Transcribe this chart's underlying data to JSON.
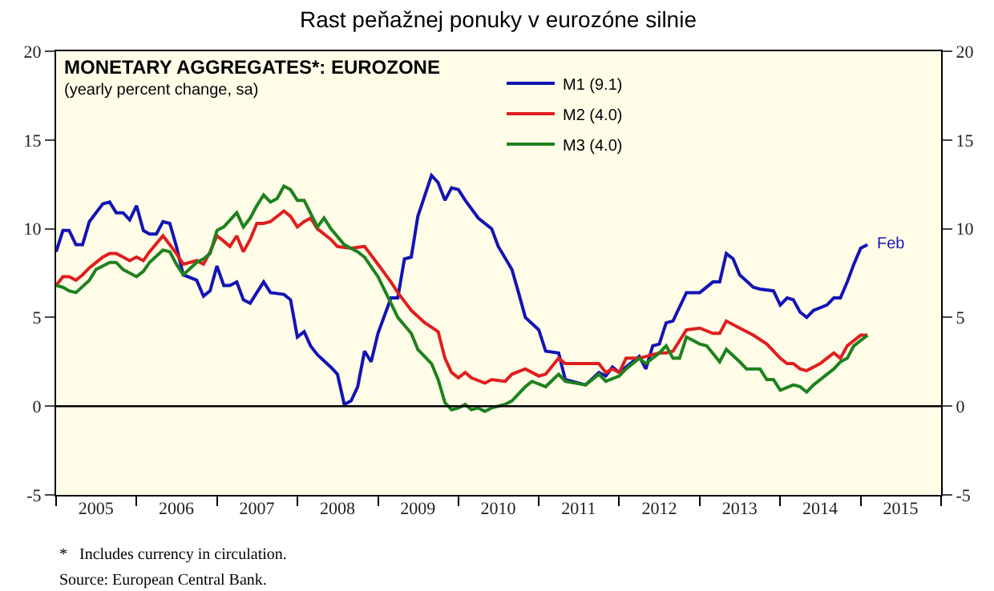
{
  "chart_data": {
    "type": "line",
    "title": "Rast peňažnej ponuky v eurozóne silnie",
    "subtitle": "MONETARY AGGREGATES*: EUROZONE",
    "annotations": [
      "(yearly percent change, sa)",
      "*   Includes currency in circulation.",
      "Source: European Central Bank.",
      {
        "text": "Feb",
        "x": "2015-02",
        "y": 9.1
      }
    ],
    "series": [
      {
        "name": "M1 (9.1)",
        "color": "#1414b4",
        "x": [
          "2005-01",
          "2005-02",
          "2005-03",
          "2005-04",
          "2005-05",
          "2005-06",
          "2005-08",
          "2005-09",
          "2005-10",
          "2005-11",
          "2005-12",
          "2006-01",
          "2006-02",
          "2006-03",
          "2006-04",
          "2006-05",
          "2006-06",
          "2006-07",
          "2006-08",
          "2006-10",
          "2006-11",
          "2006-12",
          "2007-01",
          "2007-02",
          "2007-03",
          "2007-04",
          "2007-05",
          "2007-06",
          "2007-07",
          "2007-08",
          "2007-09",
          "2007-11",
          "2007-12",
          "2008-01",
          "2008-02",
          "2008-03",
          "2008-04",
          "2008-06",
          "2008-07",
          "2008-08",
          "2008-09",
          "2008-10",
          "2008-11",
          "2008-12",
          "2009-01",
          "2009-03",
          "2009-04",
          "2009-05",
          "2009-06",
          "2009-07",
          "2009-09",
          "2009-10",
          "2009-11",
          "2009-12",
          "2010-01",
          "2010-02",
          "2010-04",
          "2010-06",
          "2010-07",
          "2010-09",
          "2010-10",
          "2010-11",
          "2011-01",
          "2011-02",
          "2011-04",
          "2011-05",
          "2011-06",
          "2011-08",
          "2011-10",
          "2011-11",
          "2011-12",
          "2012-01",
          "2012-04",
          "2012-05",
          "2012-06",
          "2012-07",
          "2012-08",
          "2012-09",
          "2012-11",
          "2013-01",
          "2013-03",
          "2013-04",
          "2013-05",
          "2013-06",
          "2013-07",
          "2013-09",
          "2013-10",
          "2013-12",
          "2014-01",
          "2014-02",
          "2014-03",
          "2014-04",
          "2014-05",
          "2014-06",
          "2014-08",
          "2014-09",
          "2014-10",
          "2014-11",
          "2014-12",
          "2015-01",
          "2015-02"
        ],
        "values": [
          8.7,
          9.9,
          9.9,
          9.1,
          9.1,
          10.4,
          11.4,
          11.5,
          10.9,
          10.9,
          10.5,
          11.3,
          9.9,
          9.7,
          9.7,
          10.4,
          10.3,
          9.0,
          7.4,
          7.1,
          6.2,
          6.5,
          7.9,
          6.8,
          6.8,
          7.0,
          6.0,
          5.8,
          6.4,
          7.0,
          6.4,
          6.3,
          6.0,
          3.9,
          4.2,
          3.4,
          2.9,
          2.2,
          1.8,
          0.1,
          0.3,
          1.1,
          3.1,
          2.5,
          4.1,
          6.1,
          6.1,
          8.3,
          8.4,
          10.7,
          13.0,
          12.6,
          11.6,
          12.3,
          12.2,
          11.6,
          10.6,
          10.0,
          9.0,
          7.7,
          6.4,
          5.0,
          4.3,
          3.1,
          3.0,
          1.5,
          1.4,
          1.2,
          1.9,
          1.7,
          2.2,
          1.9,
          2.8,
          2.1,
          3.4,
          3.5,
          4.7,
          4.8,
          6.4,
          6.4,
          7.0,
          7.0,
          8.6,
          8.3,
          7.4,
          6.7,
          6.6,
          6.5,
          5.7,
          6.1,
          6.0,
          5.3,
          5.0,
          5.4,
          5.7,
          6.1,
          6.1,
          7.0,
          8.0,
          8.9,
          9.1
        ]
      },
      {
        "name": "M2 (4.0)",
        "color": "#e01e1e",
        "x": [
          "2005-01",
          "2005-02",
          "2005-03",
          "2005-04",
          "2005-05",
          "2005-06",
          "2005-08",
          "2005-09",
          "2005-10",
          "2005-11",
          "2005-12",
          "2006-01",
          "2006-02",
          "2006-03",
          "2006-05",
          "2006-06",
          "2006-07",
          "2006-08",
          "2006-10",
          "2006-11",
          "2006-12",
          "2007-01",
          "2007-02",
          "2007-03",
          "2007-04",
          "2007-05",
          "2007-06",
          "2007-07",
          "2007-08",
          "2007-09",
          "2007-11",
          "2007-12",
          "2008-01",
          "2008-02",
          "2008-03",
          "2008-04",
          "2008-06",
          "2008-07",
          "2008-09",
          "2008-11",
          "2009-01",
          "2009-03",
          "2009-04",
          "2009-06",
          "2009-08",
          "2009-10",
          "2009-11",
          "2009-12",
          "2010-01",
          "2010-02",
          "2010-03",
          "2010-05",
          "2010-06",
          "2010-08",
          "2010-09",
          "2010-11",
          "2011-01",
          "2011-02",
          "2011-04",
          "2011-05",
          "2011-08",
          "2011-10",
          "2011-11",
          "2011-12",
          "2012-01",
          "2012-02",
          "2012-04",
          "2012-05",
          "2012-07",
          "2012-08",
          "2012-09",
          "2012-11",
          "2013-01",
          "2013-03",
          "2013-04",
          "2013-05",
          "2013-07",
          "2013-09",
          "2013-11",
          "2014-01",
          "2014-02",
          "2014-03",
          "2014-04",
          "2014-05",
          "2014-07",
          "2014-08",
          "2014-09",
          "2014-10",
          "2014-11",
          "2014-12",
          "2015-01",
          "2015-02"
        ],
        "values": [
          6.8,
          7.3,
          7.3,
          7.1,
          7.4,
          7.8,
          8.4,
          8.6,
          8.6,
          8.4,
          8.2,
          8.4,
          8.2,
          8.7,
          9.6,
          9.1,
          8.6,
          8.0,
          8.2,
          8.0,
          8.7,
          9.6,
          9.3,
          9.0,
          9.6,
          8.7,
          9.4,
          10.3,
          10.3,
          10.4,
          11.0,
          10.7,
          10.1,
          10.4,
          10.6,
          10.0,
          9.4,
          9.0,
          8.9,
          9.0,
          8.0,
          7.0,
          6.4,
          5.4,
          4.7,
          4.2,
          2.7,
          1.9,
          1.6,
          1.9,
          1.6,
          1.3,
          1.5,
          1.4,
          1.8,
          2.1,
          1.7,
          1.8,
          2.7,
          2.4,
          2.4,
          2.4,
          1.9,
          2.1,
          1.9,
          2.7,
          2.7,
          2.8,
          3.0,
          3.0,
          3.1,
          4.3,
          4.4,
          4.1,
          4.1,
          4.8,
          4.4,
          4.0,
          3.5,
          2.7,
          2.4,
          2.4,
          2.1,
          2.0,
          2.4,
          2.7,
          3.0,
          2.7,
          3.4,
          3.7,
          4.0,
          4.0
        ]
      },
      {
        "name": "M3 (4.0)",
        "color": "#1e821e",
        "x": [
          "2005-01",
          "2005-02",
          "2005-03",
          "2005-04",
          "2005-06",
          "2005-07",
          "2005-09",
          "2005-10",
          "2005-11",
          "2006-01",
          "2006-02",
          "2006-03",
          "2006-05",
          "2006-06",
          "2006-07",
          "2006-08",
          "2006-10",
          "2006-11",
          "2006-12",
          "2007-01",
          "2007-02",
          "2007-04",
          "2007-05",
          "2007-06",
          "2007-07",
          "2007-08",
          "2007-09",
          "2007-10",
          "2007-11",
          "2007-12",
          "2008-01",
          "2008-02",
          "2008-04",
          "2008-05",
          "2008-06",
          "2008-08",
          "2008-10",
          "2008-11",
          "2009-01",
          "2009-03",
          "2009-04",
          "2009-06",
          "2009-07",
          "2009-09",
          "2009-10",
          "2009-11",
          "2009-12",
          "2010-01",
          "2010-02",
          "2010-03",
          "2010-04",
          "2010-05",
          "2010-06",
          "2010-08",
          "2010-09",
          "2010-11",
          "2010-12",
          "2011-02",
          "2011-04",
          "2011-05",
          "2011-08",
          "2011-10",
          "2011-11",
          "2012-01",
          "2012-02",
          "2012-04",
          "2012-05",
          "2012-07",
          "2012-08",
          "2012-09",
          "2012-10",
          "2012-11",
          "2013-01",
          "2013-02",
          "2013-04",
          "2013-05",
          "2013-07",
          "2013-08",
          "2013-10",
          "2013-11",
          "2013-12",
          "2014-01",
          "2014-03",
          "2014-04",
          "2014-05",
          "2014-06",
          "2014-08",
          "2014-09",
          "2014-10",
          "2014-11",
          "2014-12",
          "2015-01",
          "2015-02"
        ],
        "values": [
          6.8,
          6.7,
          6.5,
          6.4,
          7.1,
          7.7,
          8.1,
          8.1,
          7.7,
          7.3,
          7.6,
          8.1,
          8.8,
          8.7,
          8.0,
          7.4,
          8.1,
          8.3,
          8.6,
          9.9,
          10.1,
          10.9,
          10.1,
          10.6,
          11.3,
          11.9,
          11.5,
          11.7,
          12.4,
          12.2,
          11.6,
          11.6,
          10.1,
          10.6,
          10.0,
          9.1,
          8.7,
          8.4,
          7.3,
          5.8,
          5.0,
          4.1,
          3.2,
          2.4,
          1.5,
          0.2,
          -0.2,
          -0.1,
          0.1,
          -0.2,
          -0.1,
          -0.3,
          -0.1,
          0.1,
          0.3,
          1.1,
          1.4,
          1.1,
          1.8,
          1.4,
          1.2,
          1.8,
          1.4,
          1.7,
          2.1,
          2.7,
          2.4,
          3.0,
          3.4,
          2.7,
          2.7,
          3.9,
          3.5,
          3.4,
          2.5,
          3.2,
          2.5,
          2.1,
          2.1,
          1.5,
          1.5,
          0.9,
          1.2,
          1.1,
          0.8,
          1.2,
          1.8,
          2.1,
          2.5,
          2.7,
          3.4,
          3.7,
          4.0
        ]
      }
    ],
    "xlim": [
      "2005-01",
      "2016-01"
    ],
    "xticks": [
      {
        "value": "2005-01",
        "label": null
      },
      {
        "value": "2005-07",
        "label": "2005"
      },
      {
        "value": "2006-01",
        "label": null
      },
      {
        "value": "2006-07",
        "label": "2006"
      },
      {
        "value": "2007-01",
        "label": null
      },
      {
        "value": "2007-07",
        "label": "2007"
      },
      {
        "value": "2008-01",
        "label": null
      },
      {
        "value": "2008-07",
        "label": "2008"
      },
      {
        "value": "2009-01",
        "label": null
      },
      {
        "value": "2009-07",
        "label": "2009"
      },
      {
        "value": "2010-01",
        "label": null
      },
      {
        "value": "2010-07",
        "label": "2010"
      },
      {
        "value": "2011-01",
        "label": null
      },
      {
        "value": "2011-07",
        "label": "2011"
      },
      {
        "value": "2012-01",
        "label": null
      },
      {
        "value": "2012-07",
        "label": "2012"
      },
      {
        "value": "2013-01",
        "label": null
      },
      {
        "value": "2013-07",
        "label": "2013"
      },
      {
        "value": "2014-01",
        "label": null
      },
      {
        "value": "2014-07",
        "label": "2014"
      },
      {
        "value": "2015-01",
        "label": null
      },
      {
        "value": "2015-07",
        "label": "2015"
      },
      {
        "value": "2016-01",
        "label": null
      }
    ],
    "ylim": [
      -5,
      20
    ],
    "yticks": [
      -5,
      0,
      5,
      10,
      15,
      20
    ],
    "y2lim": [
      -5,
      20
    ],
    "y2ticks": [
      -5,
      0,
      5,
      10,
      15,
      20
    ],
    "ref_lines": [
      {
        "axis": "y",
        "value": 0,
        "color": "#000000"
      }
    ],
    "grid": false,
    "legend": "top",
    "marker": "none",
    "line_style": "solid"
  }
}
